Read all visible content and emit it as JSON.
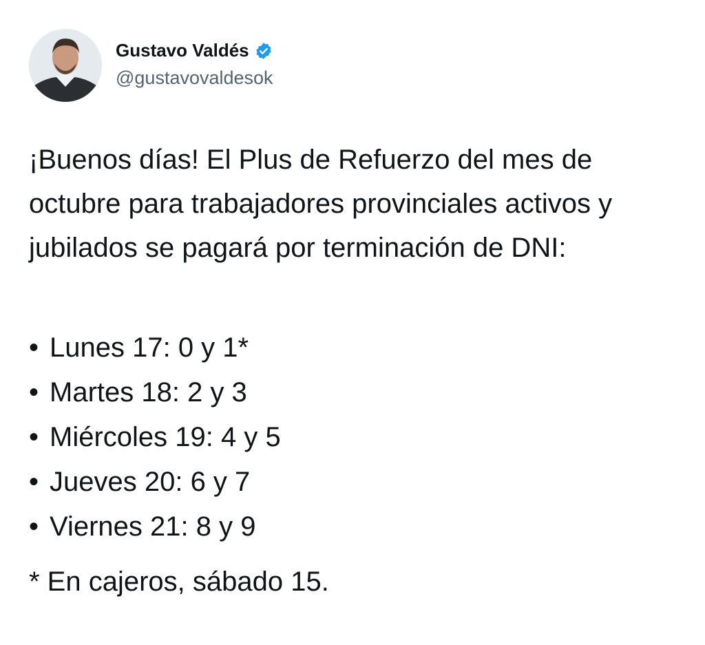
{
  "author": {
    "name": "Gustavo Valdés",
    "handle": "@gustavovaldesok",
    "verified": true,
    "verified_color": "#1d9bf0"
  },
  "tweet": {
    "intro": "¡Buenos días! El Plus de Refuerzo del mes de octubre para trabajadores provinciales activos y jubilados se pagará por terminación de DNI:",
    "schedule": [
      "Lunes 17: 0 y 1*",
      "Martes 18: 2 y 3",
      "Miércoles 19: 4 y 5",
      "Jueves 20: 6 y 7",
      "Viernes 21: 8 y 9"
    ],
    "footnote": "* En cajeros, sábado 15."
  }
}
